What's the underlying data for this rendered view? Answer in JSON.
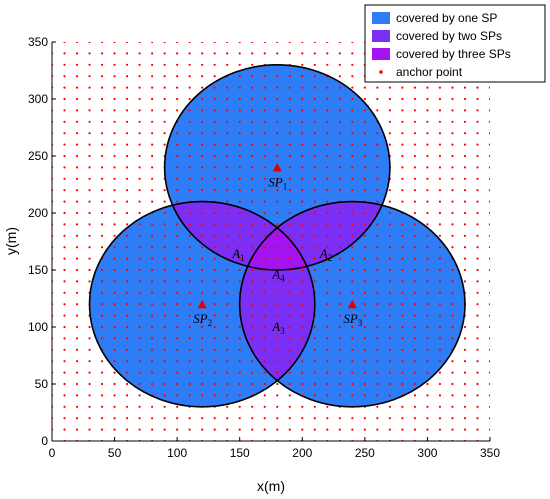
{
  "chart_data": {
    "type": "scatter",
    "xlabel": "x(m)",
    "ylabel": "y(m)",
    "xlim": [
      0,
      350
    ],
    "ylim": [
      0,
      350
    ],
    "xticks": [
      0,
      50,
      100,
      150,
      200,
      250,
      300,
      350
    ],
    "yticks": [
      0,
      50,
      100,
      150,
      200,
      250,
      300,
      350
    ],
    "grid": false,
    "legend_position": "top-right",
    "legend": [
      {
        "label": "covered by one SP",
        "color": "#2f7df6",
        "marker": "patch"
      },
      {
        "label": "covered by two SPs",
        "color": "#7b2ff5",
        "marker": "patch"
      },
      {
        "label": "covered by three SPs",
        "color": "#a314f0",
        "marker": "patch"
      },
      {
        "label": "anchor point",
        "color": "#ff0000",
        "marker": "dot"
      }
    ],
    "anchor_grid": {
      "start": 0,
      "end": 350,
      "step": 10,
      "color": "#ff0000"
    },
    "coverage_radius": 90,
    "colors": {
      "one": "#2f7df6",
      "two": "#7b2ff5",
      "three": "#a314f0",
      "anchor": "#ff0000",
      "sp_marker": "#e00000",
      "circle_edge": "#000000"
    },
    "service_points": [
      {
        "name": "SP",
        "sub": "1",
        "x": 180,
        "y": 240
      },
      {
        "name": "SP",
        "sub": "2",
        "x": 120,
        "y": 120
      },
      {
        "name": "SP",
        "sub": "3",
        "x": 240,
        "y": 120
      }
    ],
    "region_labels": [
      {
        "name": "A",
        "sub": "1",
        "x": 148,
        "y": 164
      },
      {
        "name": "A",
        "sub": "2",
        "x": 218,
        "y": 164
      },
      {
        "name": "A",
        "sub": "3",
        "x": 180,
        "y": 100
      },
      {
        "name": "A",
        "sub": "4",
        "x": 180,
        "y": 146
      }
    ]
  }
}
